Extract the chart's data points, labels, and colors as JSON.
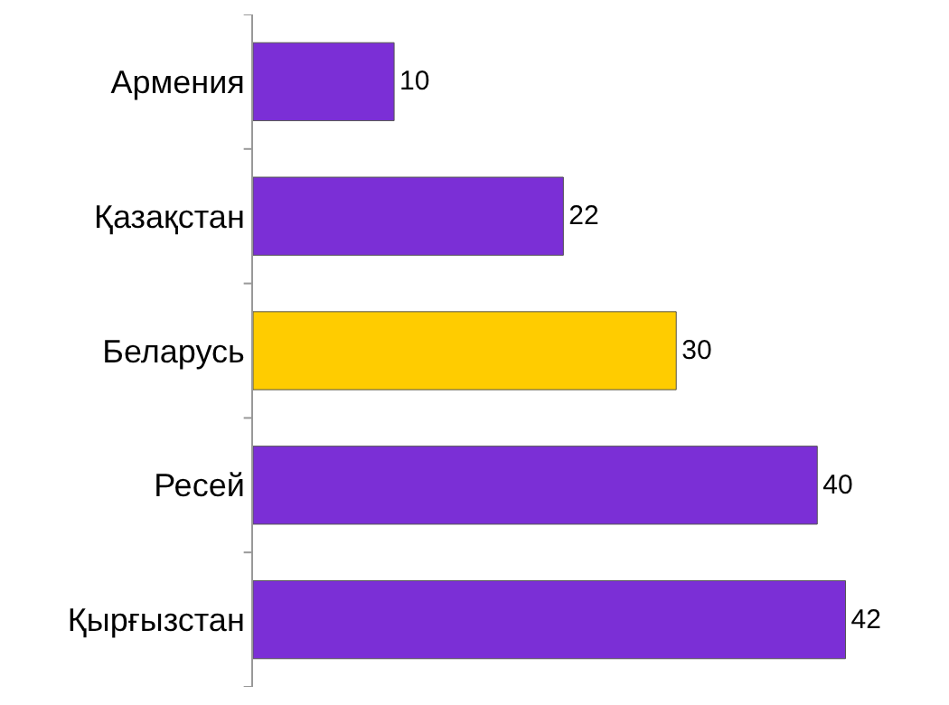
{
  "chart_data": {
    "type": "bar",
    "orientation": "horizontal",
    "categories": [
      "Армения",
      "Қазақстан",
      "Беларусь",
      "Ресей",
      "Қырғызстан"
    ],
    "values": [
      10,
      22,
      30,
      40,
      42
    ],
    "colors": [
      "#7b2fd6",
      "#7b2fd6",
      "#ffcc00",
      "#7b2fd6",
      "#7b2fd6"
    ],
    "data_labels": true
  }
}
